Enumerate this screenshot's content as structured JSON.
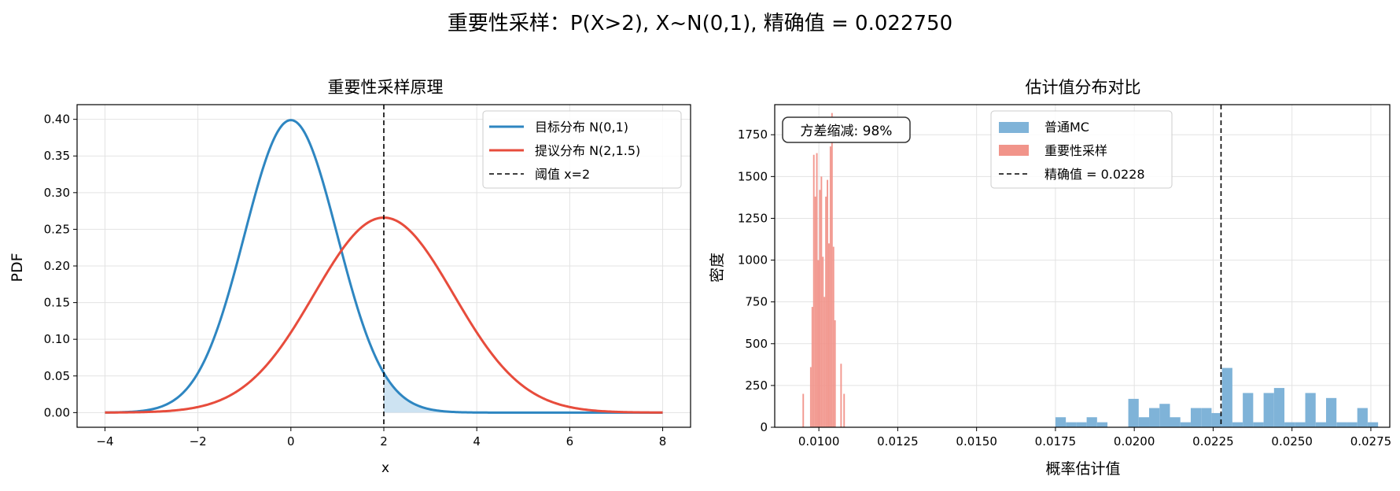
{
  "suptitle": "重要性采样：P(X>2), X~N(0,1), 精确值 = 0.022750",
  "chart_data": [
    {
      "type": "line",
      "title": "重要性采样原理",
      "xlabel": "x",
      "ylabel": "PDF",
      "xlim": [
        -4.6,
        8.6
      ],
      "ylim": [
        -0.02,
        0.42
      ],
      "xticks": [
        -4,
        -2,
        0,
        2,
        4,
        6,
        8
      ],
      "xtick_labels": [
        "−4",
        "−2",
        "0",
        "2",
        "4",
        "6",
        "8"
      ],
      "yticks": [
        0.0,
        0.05,
        0.1,
        0.15,
        0.2,
        0.25,
        0.3,
        0.35,
        0.4
      ],
      "ytick_labels": [
        "0.00",
        "0.05",
        "0.10",
        "0.15",
        "0.20",
        "0.25",
        "0.30",
        "0.35",
        "0.40"
      ],
      "grid": true,
      "legend_position": "top-right",
      "x_range": [
        -4,
        8
      ],
      "series": [
        {
          "name": "目标分布 N(0,1)",
          "kind": "normal-pdf",
          "mean": 0,
          "sd": 1,
          "color": "#2e86c1"
        },
        {
          "name": "提议分布 N(2,1.5)",
          "kind": "normal-pdf",
          "mean": 2,
          "sd": 1.5,
          "color": "#e74c3c"
        }
      ],
      "vline": {
        "x": 2,
        "label": "阈值 x=2",
        "color": "#000000"
      },
      "shaded_region": {
        "from": 2,
        "to": 8,
        "under": "目标分布 N(0,1)",
        "color": "#bcd9ee"
      }
    },
    {
      "type": "histogram",
      "title": "估计值分布对比",
      "xlabel": "概率估计值",
      "ylabel": "密度",
      "xlim": [
        0.0086,
        0.0281
      ],
      "ylim": [
        0,
        1930
      ],
      "xticks": [
        0.01,
        0.0125,
        0.015,
        0.0175,
        0.02,
        0.0225,
        0.025,
        0.0275
      ],
      "xtick_labels": [
        "0.0100",
        "0.0125",
        "0.0150",
        "0.0175",
        "0.0200",
        "0.0225",
        "0.0250",
        "0.0275"
      ],
      "yticks": [
        0,
        250,
        500,
        750,
        1000,
        1250,
        1500,
        1750
      ],
      "ytick_labels": [
        "0",
        "250",
        "500",
        "750",
        "1000",
        "1250",
        "1500",
        "1750"
      ],
      "grid": true,
      "legend_position": "top-center",
      "annotation": "方差缩减: 98%",
      "series": [
        {
          "name": "普通MC",
          "color": "#7fb3d8",
          "bin_start": 0.0175,
          "bin_width": 0.00033,
          "values": [
            60,
            30,
            30,
            60,
            30,
            0,
            0,
            170,
            60,
            115,
            140,
            60,
            30,
            115,
            115,
            85,
            355,
            30,
            205,
            30,
            205,
            235,
            30,
            30,
            205,
            30,
            175,
            30,
            30,
            115,
            30
          ]
        },
        {
          "name": "重要性采样",
          "color": "#f1948a",
          "bin_start": 0.00948,
          "bin_width": 4.8e-05,
          "values": [
            200,
            0,
            0,
            0,
            0,
            360,
            720,
            1630,
            1380,
            1640,
            1000,
            1420,
            1500,
            1020,
            780,
            1380,
            1480,
            1100,
            1680,
            1880,
            1080,
            640,
            0,
            0,
            0,
            380,
            0,
            200
          ]
        }
      ],
      "vline": {
        "x": 0.02275,
        "label": "精确值 = 0.0228",
        "color": "#000000"
      }
    }
  ]
}
